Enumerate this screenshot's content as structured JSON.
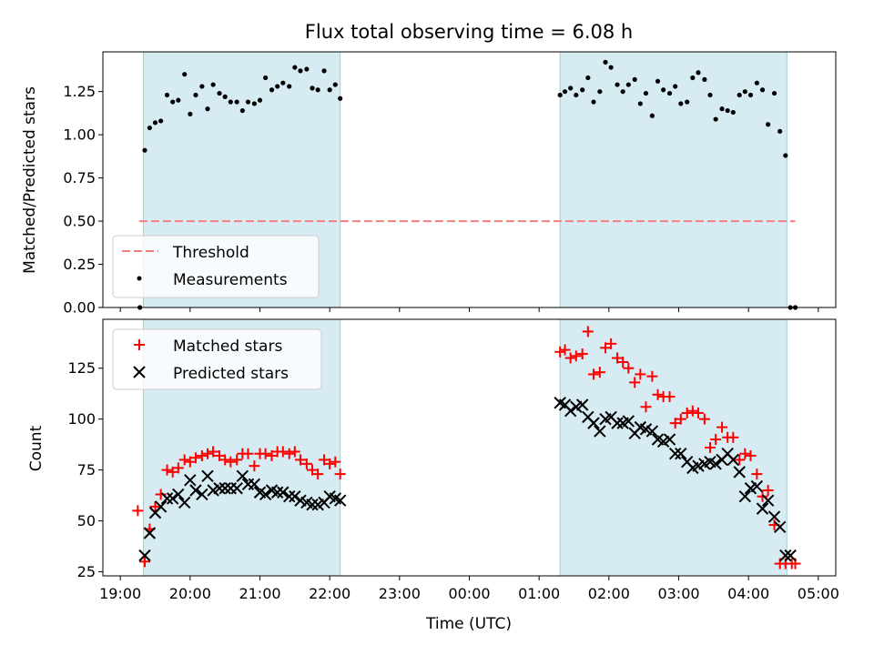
{
  "title": "Flux total observing time = 6.08 h",
  "chart_data": [
    {
      "type": "scatter",
      "ylabel": "Matched/Predicted stars",
      "ylim": [
        0,
        1.48
      ],
      "yticks": [
        "0.00",
        "0.25",
        "0.50",
        "0.75",
        "1.00",
        "1.25"
      ],
      "threshold": {
        "name": "Threshold",
        "value": 0.5,
        "x_range": [
          19.27,
          28.67
        ],
        "color": "#f08080"
      },
      "legend": [
        "Threshold",
        "Measurements"
      ],
      "legend_position": "lower-left",
      "shaded_ranges": [
        [
          19.33,
          22.15
        ],
        [
          25.3,
          28.55
        ]
      ],
      "series": [
        {
          "name": "Measurements",
          "color": "#000000",
          "x": [
            19.28,
            19.35,
            19.42,
            19.5,
            19.58,
            19.67,
            19.75,
            19.83,
            19.92,
            20.0,
            20.08,
            20.17,
            20.25,
            20.33,
            20.42,
            20.5,
            20.58,
            20.67,
            20.75,
            20.83,
            20.92,
            21.0,
            21.08,
            21.17,
            21.25,
            21.33,
            21.42,
            21.5,
            21.58,
            21.67,
            21.75,
            21.83,
            21.92,
            22.0,
            22.08,
            22.15,
            25.3,
            25.37,
            25.45,
            25.53,
            25.62,
            25.7,
            25.78,
            25.87,
            25.95,
            26.03,
            26.12,
            26.2,
            26.28,
            26.37,
            26.45,
            26.53,
            26.62,
            26.7,
            26.78,
            26.87,
            26.95,
            27.03,
            27.12,
            27.2,
            27.28,
            27.37,
            27.45,
            27.53,
            27.62,
            27.7,
            27.78,
            27.87,
            27.95,
            28.03,
            28.12,
            28.2,
            28.28,
            28.37,
            28.45,
            28.53,
            28.6,
            28.67
          ],
          "y": [
            0.0,
            0.91,
            1.04,
            1.07,
            1.08,
            1.23,
            1.19,
            1.2,
            1.35,
            1.12,
            1.23,
            1.28,
            1.15,
            1.29,
            1.24,
            1.22,
            1.19,
            1.19,
            1.14,
            1.19,
            1.18,
            1.2,
            1.33,
            1.26,
            1.28,
            1.3,
            1.28,
            1.39,
            1.37,
            1.38,
            1.27,
            1.26,
            1.37,
            1.26,
            1.29,
            1.21,
            1.23,
            1.25,
            1.27,
            1.23,
            1.26,
            1.33,
            1.19,
            1.25,
            1.42,
            1.39,
            1.29,
            1.25,
            1.29,
            1.32,
            1.18,
            1.24,
            1.11,
            1.31,
            1.26,
            1.24,
            1.28,
            1.18,
            1.19,
            1.33,
            1.36,
            1.32,
            1.23,
            1.09,
            1.15,
            1.14,
            1.13,
            1.23,
            1.25,
            1.23,
            1.3,
            1.26,
            1.06,
            1.24,
            1.02,
            0.88,
            0.0,
            0.0
          ]
        }
      ]
    },
    {
      "type": "scatter",
      "xlabel": "Time (UTC)",
      "ylabel": "Count",
      "ylim": [
        23,
        149
      ],
      "yticks": [
        "25",
        "50",
        "75",
        "100",
        "125"
      ],
      "xlim": [
        18.75,
        29.25
      ],
      "xticks": [
        "19:00",
        "20:00",
        "21:00",
        "22:00",
        "23:00",
        "00:00",
        "01:00",
        "02:00",
        "03:00",
        "04:00",
        "05:00"
      ],
      "legend_position": "upper-left",
      "shaded_ranges": [
        [
          19.33,
          22.15
        ],
        [
          25.3,
          28.55
        ]
      ],
      "series": [
        {
          "name": "Matched stars",
          "marker": "+",
          "color": "#ff0000",
          "x": [
            19.25,
            19.35,
            19.42,
            19.5,
            19.58,
            19.67,
            19.75,
            19.83,
            19.92,
            20.0,
            20.08,
            20.17,
            20.25,
            20.33,
            20.42,
            20.5,
            20.58,
            20.67,
            20.75,
            20.83,
            20.92,
            21.0,
            21.08,
            21.17,
            21.25,
            21.33,
            21.42,
            21.5,
            21.58,
            21.67,
            21.75,
            21.83,
            21.92,
            22.0,
            22.08,
            22.15,
            25.3,
            25.37,
            25.45,
            25.53,
            25.62,
            25.7,
            25.78,
            25.87,
            25.95,
            26.03,
            26.12,
            26.2,
            26.28,
            26.37,
            26.45,
            26.53,
            26.62,
            26.7,
            26.78,
            26.87,
            26.95,
            27.03,
            27.12,
            27.2,
            27.28,
            27.37,
            27.45,
            27.53,
            27.62,
            27.7,
            27.78,
            27.87,
            27.95,
            28.03,
            28.12,
            28.2,
            28.28,
            28.37,
            28.45,
            28.53,
            28.62,
            28.67
          ],
          "y": [
            55,
            30,
            46,
            57,
            63,
            75,
            74,
            76,
            80,
            79,
            81,
            82,
            83,
            84,
            82,
            80,
            79,
            80,
            83,
            83,
            77,
            83,
            83,
            82,
            84,
            84,
            83,
            84,
            80,
            78,
            75,
            73,
            80,
            78,
            79,
            73,
            133,
            134,
            130,
            131,
            132,
            143,
            122,
            123,
            135,
            137,
            130,
            128,
            125,
            118,
            122,
            106,
            121,
            112,
            111,
            111,
            98,
            100,
            103,
            104,
            103,
            100,
            86,
            90,
            96,
            91,
            91,
            80,
            83,
            82,
            73,
            62,
            65,
            48,
            29,
            29,
            29,
            29
          ]
        },
        {
          "name": "Predicted stars",
          "marker": "x",
          "color": "#000000",
          "x": [
            19.35,
            19.42,
            19.5,
            19.58,
            19.67,
            19.75,
            19.83,
            19.92,
            20.0,
            20.08,
            20.17,
            20.25,
            20.33,
            20.42,
            20.5,
            20.58,
            20.67,
            20.75,
            20.83,
            20.92,
            21.0,
            21.08,
            21.17,
            21.25,
            21.33,
            21.42,
            21.5,
            21.58,
            21.67,
            21.75,
            21.83,
            21.92,
            22.0,
            22.08,
            22.15,
            25.3,
            25.37,
            25.45,
            25.53,
            25.62,
            25.7,
            25.78,
            25.87,
            25.95,
            26.03,
            26.12,
            26.2,
            26.28,
            26.37,
            26.45,
            26.53,
            26.62,
            26.7,
            26.78,
            26.87,
            26.95,
            27.03,
            27.12,
            27.2,
            27.28,
            27.37,
            27.45,
            27.53,
            27.62,
            27.7,
            27.78,
            27.87,
            27.95,
            28.03,
            28.12,
            28.2,
            28.28,
            28.37,
            28.45,
            28.53,
            28.6
          ],
          "y": [
            33,
            44,
            54,
            57,
            61,
            61,
            63,
            59,
            70,
            65,
            63,
            72,
            65,
            66,
            66,
            66,
            66,
            72,
            68,
            68,
            64,
            63,
            65,
            64,
            64,
            62,
            62,
            60,
            59,
            58,
            58,
            59,
            62,
            61,
            60,
            108,
            107,
            104,
            106,
            107,
            101,
            98,
            94,
            100,
            101,
            98,
            98,
            99,
            93,
            96,
            95,
            94,
            90,
            89,
            90,
            83,
            83,
            79,
            76,
            77,
            78,
            79,
            78,
            80,
            83,
            80,
            74,
            62,
            66,
            67,
            56,
            60,
            52,
            47,
            33,
            33
          ]
        }
      ]
    }
  ]
}
